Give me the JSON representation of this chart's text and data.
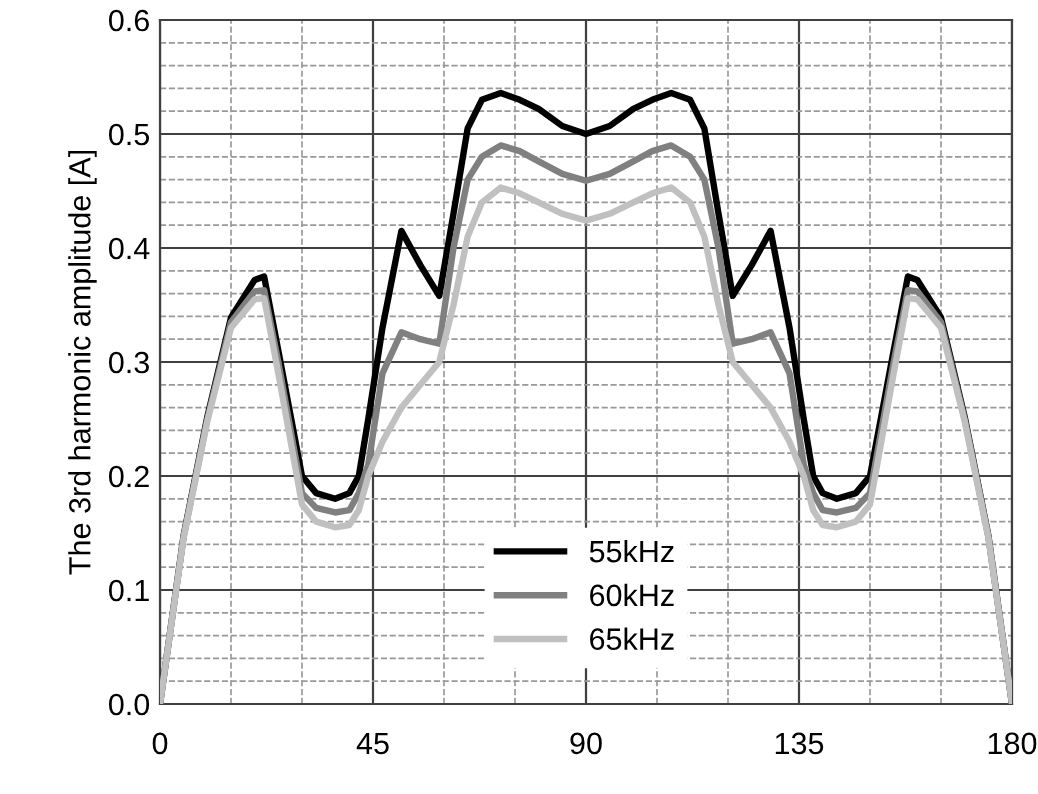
{
  "chart_data": {
    "type": "line",
    "ylabel": "The 3rd harmonic amplitude [A]",
    "x": [
      0,
      5,
      10,
      15,
      20,
      22,
      25,
      30,
      33,
      37,
      40,
      42,
      44,
      47,
      51,
      55,
      59,
      62,
      65,
      68,
      72,
      76,
      80,
      85,
      90,
      95,
      100,
      104,
      108,
      112,
      115,
      118,
      121,
      125,
      129,
      133,
      136,
      138,
      140,
      143,
      147,
      150,
      155,
      158,
      160,
      165,
      170,
      175,
      180
    ],
    "series": [
      {
        "name": "55kHz",
        "color": "#000000",
        "values": [
          0,
          0.148,
          0.252,
          0.339,
          0.372,
          0.375,
          0.31,
          0.2,
          0.185,
          0.18,
          0.185,
          0.2,
          0.25,
          0.33,
          0.415,
          0.385,
          0.358,
          0.43,
          0.505,
          0.53,
          0.536,
          0.53,
          0.522,
          0.507,
          0.5,
          0.507,
          0.522,
          0.53,
          0.536,
          0.53,
          0.505,
          0.43,
          0.358,
          0.385,
          0.415,
          0.33,
          0.25,
          0.2,
          0.185,
          0.18,
          0.185,
          0.2,
          0.31,
          0.375,
          0.372,
          0.339,
          0.252,
          0.148,
          0
        ]
      },
      {
        "name": "60kHz",
        "color": "#808080",
        "values": [
          0,
          0.147,
          0.25,
          0.335,
          0.362,
          0.363,
          0.3,
          0.185,
          0.172,
          0.168,
          0.17,
          0.185,
          0.21,
          0.29,
          0.326,
          0.32,
          0.316,
          0.4,
          0.46,
          0.48,
          0.49,
          0.485,
          0.476,
          0.465,
          0.459,
          0.465,
          0.476,
          0.485,
          0.49,
          0.48,
          0.46,
          0.4,
          0.316,
          0.32,
          0.326,
          0.29,
          0.21,
          0.185,
          0.17,
          0.168,
          0.172,
          0.185,
          0.3,
          0.363,
          0.362,
          0.335,
          0.25,
          0.147,
          0
        ]
      },
      {
        "name": "65kHz",
        "color": "#c0c0c0",
        "values": [
          0,
          0.146,
          0.248,
          0.33,
          0.355,
          0.356,
          0.29,
          0.175,
          0.16,
          0.155,
          0.157,
          0.17,
          0.2,
          0.23,
          0.26,
          0.28,
          0.3,
          0.35,
          0.41,
          0.44,
          0.453,
          0.448,
          0.44,
          0.43,
          0.424,
          0.43,
          0.44,
          0.448,
          0.453,
          0.44,
          0.41,
          0.35,
          0.3,
          0.28,
          0.26,
          0.23,
          0.2,
          0.17,
          0.157,
          0.155,
          0.16,
          0.175,
          0.29,
          0.356,
          0.355,
          0.33,
          0.248,
          0.146,
          0
        ]
      }
    ],
    "xlim": [
      0,
      180
    ],
    "xticks": [
      0,
      45,
      90,
      135,
      180
    ],
    "ylim": [
      0,
      0.6
    ],
    "yticks": [
      {
        "value": 0,
        "label": "0.0"
      },
      {
        "value": 0.1,
        "label": "0.1"
      },
      {
        "value": 0.2,
        "label": "0.2"
      },
      {
        "value": 0.3,
        "label": "0.3"
      },
      {
        "value": 0.4,
        "label": "0.4"
      },
      {
        "value": 0.5,
        "label": "0.5"
      },
      {
        "value": 0.6,
        "label": "0.6"
      }
    ],
    "grid": true,
    "legend": "bottom",
    "line_style": "solid",
    "marker": "none"
  }
}
